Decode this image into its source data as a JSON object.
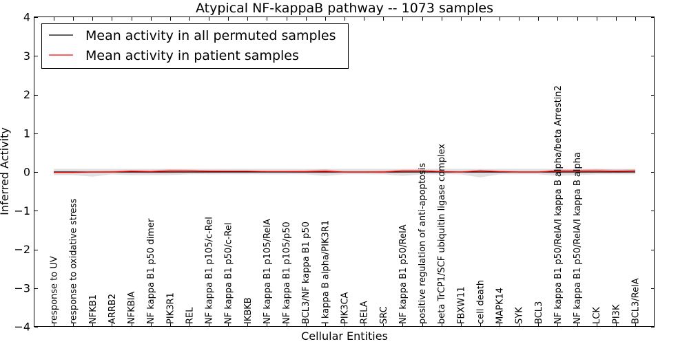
{
  "chart_data": {
    "type": "line",
    "title": "Atypical NF-kappaB pathway -- 1073 samples",
    "xlabel": "Cellular Entities",
    "ylabel": "Inferred Activity",
    "ylim": [
      -4,
      4
    ],
    "yticks": [
      4,
      3,
      2,
      1,
      0,
      -1,
      -2,
      -3,
      -4
    ],
    "ytick_labels": [
      "4",
      "3",
      "2",
      "1",
      "0",
      "−1",
      "−2",
      "−3",
      "−4"
    ],
    "grid": false,
    "legend_position": "top-left",
    "categories": [
      "response to UV",
      "response to oxidative stress",
      "NFKB1",
      "ARRB2",
      "NFKBIA",
      "NF kappa B1 p50 dimer",
      "PIK3R1",
      "REL",
      "NF kappa B1 p105/c-Rel",
      "NF kappa B1 p50/c-Rel",
      "IKBKB",
      "NF kappa B1 p105/RelA",
      "NF kappa B1 p105/p50",
      "BCL3/NF kappa B1 p50",
      "I kappa B alpha/PIK3R1",
      "PIK3CA",
      "RELA",
      "SRC",
      "NF kappa B1 p50/RelA",
      "positive regulation of anti-apoptosis",
      "beta TrCP1/SCF ubiquitin ligase complex",
      "FBXW11",
      "cell death",
      "MAPK14",
      "SYK",
      "BCL3",
      "NF kappa B1 p50/RelA/I kappa B alpha/beta Arrestin2",
      "NF kappa B1 p50/RelA/I kappa B alpha",
      "LCK",
      "PI3K",
      "BCL3/RelA"
    ],
    "series": [
      {
        "name": "Mean activity in all permuted samples",
        "color": "#000000",
        "values": [
          0.0,
          0.0,
          0.0,
          0.0,
          0.0,
          0.0,
          0.0,
          0.0,
          0.0,
          0.0,
          0.0,
          0.0,
          0.0,
          0.0,
          0.0,
          0.0,
          0.0,
          0.0,
          0.0,
          0.0,
          0.0,
          0.0,
          0.0,
          0.0,
          0.0,
          0.0,
          0.0,
          0.0,
          0.0,
          0.0,
          0.0
        ],
        "band_upper": [
          0.08,
          0.08,
          0.08,
          0.08,
          0.08,
          0.08,
          0.08,
          0.08,
          0.08,
          0.08,
          0.08,
          0.08,
          0.08,
          0.08,
          0.08,
          0.08,
          0.08,
          0.08,
          0.08,
          0.08,
          0.08,
          0.08,
          0.08,
          0.08,
          0.08,
          0.08,
          0.08,
          0.08,
          0.08,
          0.08,
          0.08
        ],
        "band_lower": [
          -0.08,
          -0.08,
          -0.12,
          -0.06,
          -0.08,
          -0.08,
          -0.08,
          -0.06,
          -0.06,
          -0.06,
          -0.06,
          -0.06,
          -0.06,
          -0.06,
          -0.1,
          -0.06,
          -0.06,
          -0.06,
          -0.1,
          -0.06,
          -0.06,
          -0.06,
          -0.14,
          -0.06,
          -0.06,
          -0.06,
          -0.1,
          -0.08,
          -0.06,
          -0.06,
          -0.06
        ],
        "band_color": "#c8c8c8"
      },
      {
        "name": "Mean activity in patient samples",
        "color": "#ff0000",
        "values": [
          -0.01,
          -0.01,
          0.0,
          0.0,
          0.02,
          0.01,
          0.03,
          0.03,
          0.02,
          0.02,
          0.02,
          0.01,
          0.01,
          0.01,
          0.02,
          0.0,
          0.0,
          0.0,
          0.03,
          0.03,
          0.01,
          0.0,
          0.03,
          0.01,
          0.0,
          0.0,
          0.03,
          0.03,
          0.03,
          0.02,
          0.03
        ],
        "band_upper": [
          0.02,
          0.02,
          0.02,
          0.03,
          0.05,
          0.04,
          0.07,
          0.06,
          0.05,
          0.04,
          0.04,
          0.03,
          0.03,
          0.04,
          0.07,
          0.02,
          0.02,
          0.03,
          0.06,
          0.06,
          0.03,
          0.02,
          0.06,
          0.03,
          0.02,
          0.02,
          0.07,
          0.06,
          0.08,
          0.06,
          0.07
        ],
        "band_lower": [
          -0.03,
          -0.03,
          -0.02,
          -0.02,
          -0.02,
          -0.03,
          -0.03,
          -0.02,
          -0.02,
          -0.01,
          -0.01,
          -0.01,
          -0.01,
          -0.02,
          -0.03,
          -0.02,
          -0.02,
          -0.03,
          -0.02,
          -0.01,
          -0.02,
          -0.02,
          -0.02,
          -0.02,
          -0.02,
          -0.02,
          -0.03,
          -0.03,
          -0.02,
          -0.02,
          -0.01
        ],
        "band_color": "#f08080"
      }
    ]
  }
}
